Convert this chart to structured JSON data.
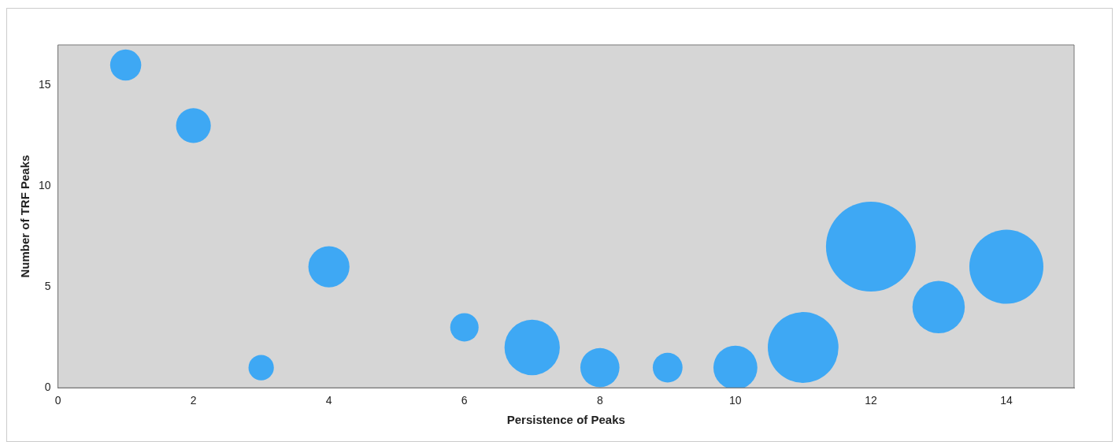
{
  "chart_data": {
    "type": "bubble",
    "xlabel": "Persistence of Peaks",
    "ylabel": "Number of TRF Peaks",
    "x": [
      1,
      2,
      3,
      4,
      6,
      7,
      8,
      9,
      10,
      11,
      12,
      13,
      14
    ],
    "values": [
      16,
      13,
      1,
      6,
      3,
      2,
      1,
      1,
      1,
      2,
      7,
      4,
      6
    ],
    "sizes": [
      0.12,
      0.15,
      0.08,
      0.21,
      0.1,
      0.38,
      0.19,
      0.11,
      0.24,
      0.62,
      1,
      0.34,
      0.68
    ],
    "color": "#3ea8f4",
    "xlim": [
      0,
      15
    ],
    "xticks": [
      0,
      2,
      4,
      6,
      8,
      10,
      12,
      14
    ],
    "ylim": [
      0,
      17
    ],
    "yticks": [
      0,
      5,
      10,
      15
    ],
    "grid": false,
    "legend": false
  }
}
